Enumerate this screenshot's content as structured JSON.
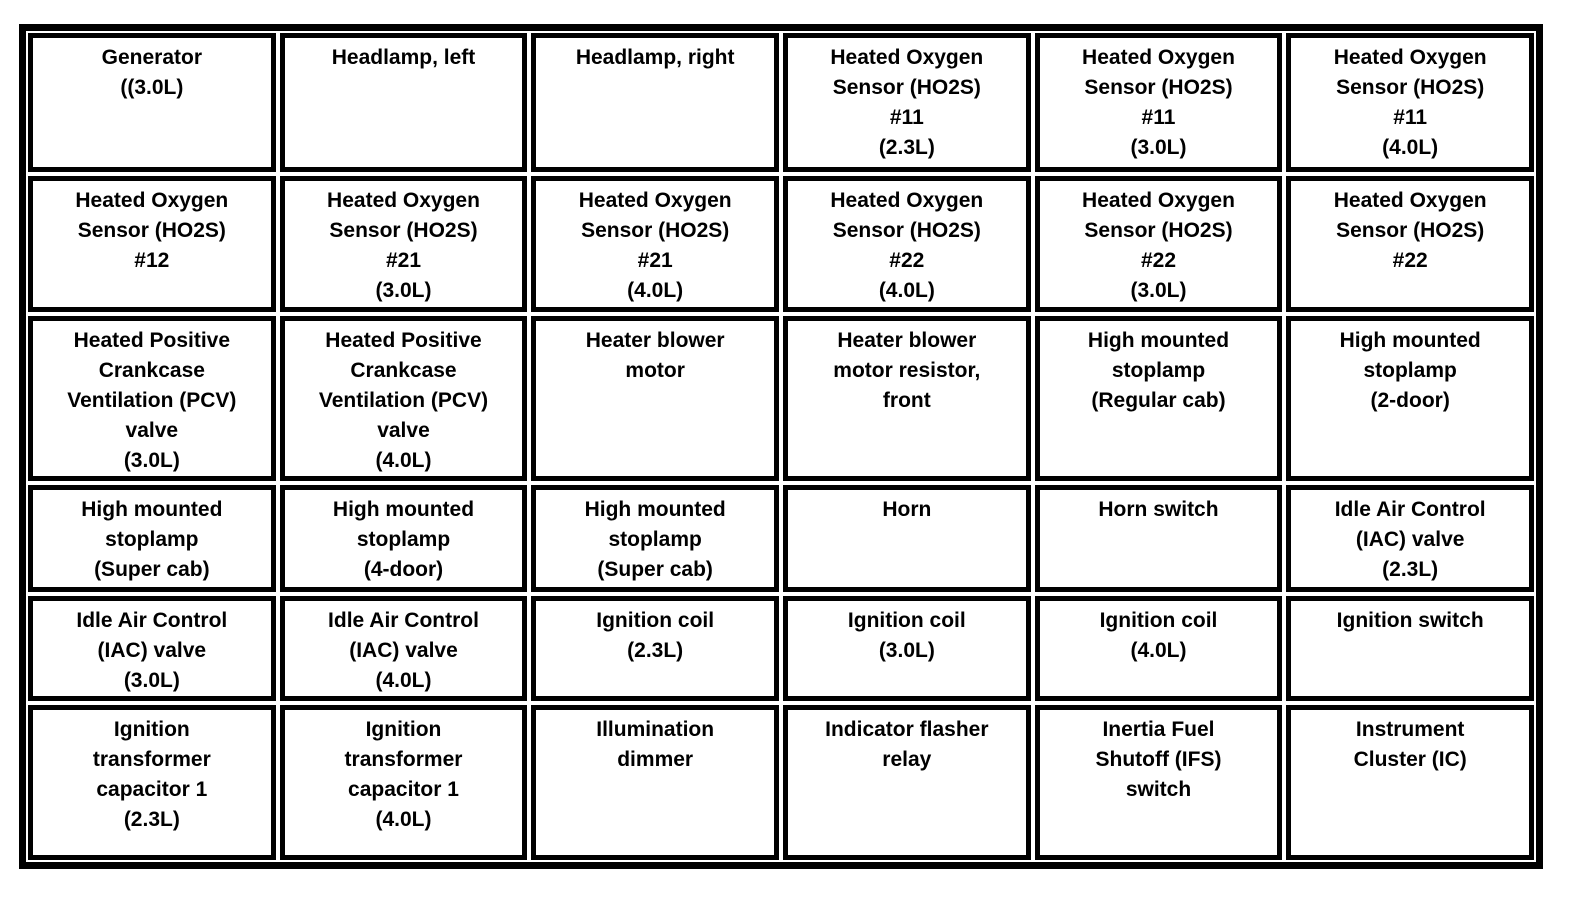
{
  "colors": {
    "border": "#000000",
    "background": "#ffffff",
    "text": "#000000"
  },
  "table": {
    "columns": 6,
    "rows": [
      {
        "cells": [
          "Generator\n((3.0L)",
          "Headlamp, left",
          "Headlamp, right",
          "Heated Oxygen\nSensor (HO2S)\n#11\n(2.3L)",
          "Heated Oxygen\nSensor (HO2S)\n#11\n(3.0L)",
          "Heated Oxygen\nSensor (HO2S)\n#11\n(4.0L)"
        ]
      },
      {
        "cells": [
          "Heated Oxygen\nSensor (HO2S)\n#12",
          "Heated Oxygen\nSensor (HO2S)\n#21\n(3.0L)",
          "Heated Oxygen\nSensor (HO2S)\n#21\n(4.0L)",
          "Heated Oxygen\nSensor (HO2S)\n#22\n(4.0L)",
          "Heated Oxygen\nSensor (HO2S)\n#22\n(3.0L)",
          "Heated Oxygen\nSensor (HO2S)\n#22"
        ]
      },
      {
        "cells": [
          "Heated Positive\nCrankcase\nVentilation (PCV)\nvalve\n(3.0L)",
          "Heated Positive\nCrankcase\nVentilation (PCV)\nvalve\n(4.0L)",
          "Heater blower\nmotor",
          "Heater blower\nmotor resistor,\nfront",
          "High mounted\nstoplamp\n(Regular cab)",
          "High mounted\nstoplamp\n(2-door)"
        ]
      },
      {
        "cells": [
          "High mounted\nstoplamp\n(Super cab)",
          "High mounted\nstoplamp\n(4-door)",
          "High mounted\nstoplamp\n(Super cab)",
          "Horn",
          "Horn switch",
          "Idle Air Control\n(IAC) valve\n(2.3L)"
        ]
      },
      {
        "cells": [
          "Idle Air Control\n(IAC) valve\n(3.0L)",
          "Idle Air Control\n(IAC) valve\n(4.0L)",
          "Ignition coil\n(2.3L)",
          "Ignition coil\n(3.0L)",
          "Ignition coil\n(4.0L)",
          "Ignition switch"
        ]
      },
      {
        "cells": [
          "Ignition\ntransformer\ncapacitor 1\n(2.3L)",
          "Ignition\ntransformer\ncapacitor 1\n(4.0L)",
          "Illumination\ndimmer",
          "Indicator flasher\nrelay",
          "Inertia Fuel\nShutoff (IFS)\nswitch",
          "Instrument\nCluster (IC)"
        ]
      }
    ]
  }
}
